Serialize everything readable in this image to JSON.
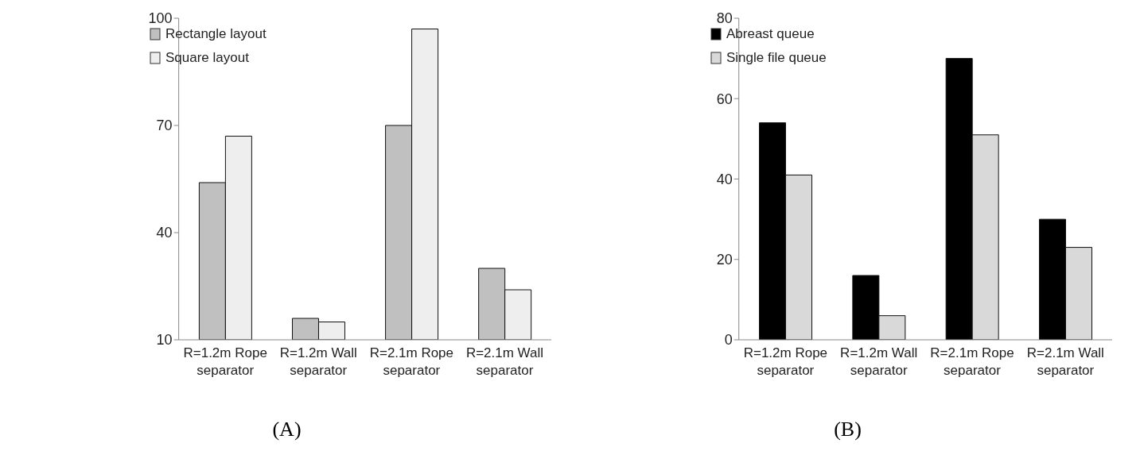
{
  "chart_data": [
    {
      "type": "bar",
      "title": "(A)",
      "categories": [
        "R=1.2m Rope separator",
        "R=1.2m Wall separator",
        "R=2.1m Rope separator",
        "R=2.1m Wall separator"
      ],
      "series": [
        {
          "name": "Rectangle layout",
          "color": "#c0c0c0",
          "values": [
            54,
            16,
            70,
            30
          ]
        },
        {
          "name": "Square layout",
          "color": "#eeeeee",
          "values": [
            67,
            15,
            97,
            24
          ]
        }
      ],
      "ylim": [
        10,
        100
      ],
      "yticks": [
        10,
        40,
        70,
        100
      ],
      "grid": false,
      "legend": "top left"
    },
    {
      "type": "bar",
      "title": "(B)",
      "categories": [
        "R=1.2m Rope separator",
        "R=1.2m Wall separator",
        "R=2.1m Rope separator",
        "R=2.1m Wall separator"
      ],
      "series": [
        {
          "name": "Abreast queue",
          "color": "#000000",
          "values": [
            54,
            16,
            70,
            30
          ]
        },
        {
          "name": "Single file queue",
          "color": "#d9d9d9",
          "values": [
            41,
            6,
            51,
            23
          ]
        }
      ],
      "ylim": [
        0,
        80
      ],
      "yticks": [
        0,
        20,
        40,
        60,
        80
      ],
      "grid": false,
      "legend": "top left"
    }
  ]
}
